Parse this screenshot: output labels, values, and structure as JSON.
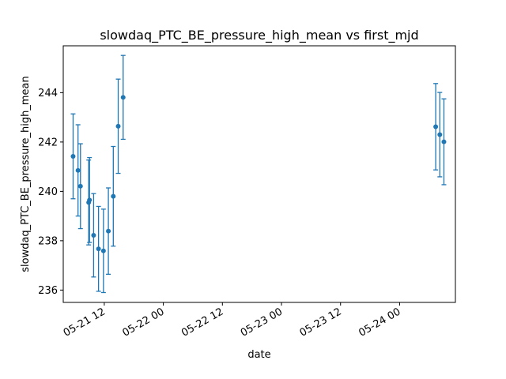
{
  "chart_data": {
    "type": "scatter",
    "title": "slowdaq_PTC_BE_pressure_high_mean vs first_mjd",
    "xlabel": "date",
    "ylabel": "slowdaq_PTC_BE_pressure_high_mean",
    "x_ticks": [
      "05-21 12",
      "05-22 00",
      "05-22 12",
      "05-23 00",
      "05-23 12",
      "05-24 00"
    ],
    "y_ticks": [
      "236",
      "238",
      "240",
      "242",
      "244"
    ],
    "xlim": [
      "2024-05-21 03:40",
      "2024-05-24 11:20"
    ],
    "ylim": [
      235.5,
      245.9
    ],
    "grid": false,
    "color": "#1f77b4",
    "series": [
      {
        "points": [
          {
            "x": "2024-05-21 05:40",
            "y": 241.42,
            "err": 1.72
          },
          {
            "x": "2024-05-21 06:40",
            "y": 240.85,
            "err": 1.85
          },
          {
            "x": "2024-05-21 07:10",
            "y": 240.21,
            "err": 1.72
          },
          {
            "x": "2024-05-21 08:50",
            "y": 239.55,
            "err": 1.72
          },
          {
            "x": "2024-05-21 09:00",
            "y": 239.65,
            "err": 1.72
          },
          {
            "x": "2024-05-21 09:50",
            "y": 238.22,
            "err": 1.69
          },
          {
            "x": "2024-05-21 10:50",
            "y": 237.67,
            "err": 1.72
          },
          {
            "x": "2024-05-21 11:50",
            "y": 237.59,
            "err": 1.69
          },
          {
            "x": "2024-05-21 12:50",
            "y": 238.39,
            "err": 1.75
          },
          {
            "x": "2024-05-21 13:50",
            "y": 239.8,
            "err": 2.02
          },
          {
            "x": "2024-05-21 14:50",
            "y": 242.64,
            "err": 1.91
          },
          {
            "x": "2024-05-21 15:50",
            "y": 243.81,
            "err": 1.7
          },
          {
            "x": "2024-05-24 07:20",
            "y": 242.62,
            "err": 1.75
          },
          {
            "x": "2024-05-24 08:10",
            "y": 242.3,
            "err": 1.71
          },
          {
            "x": "2024-05-24 09:00",
            "y": 242.01,
            "err": 1.74
          }
        ]
      }
    ]
  }
}
